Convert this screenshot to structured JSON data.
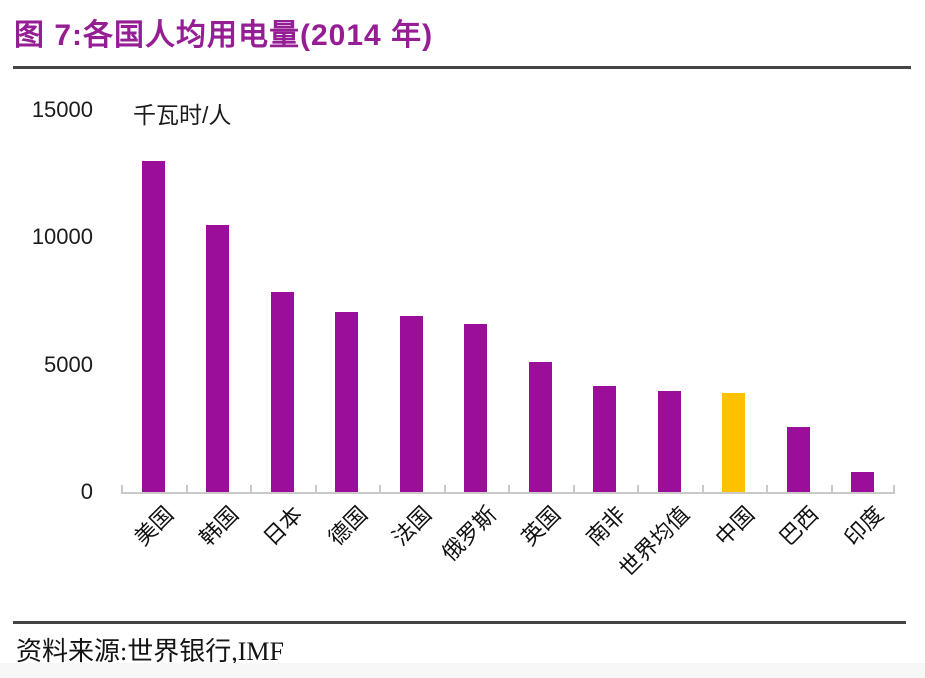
{
  "header": {
    "title": "图 7:各国人均用电量(2014 年)"
  },
  "chart_data": {
    "type": "bar",
    "title": "图 7:各国人均用电量(2014 年)",
    "unit_label": "千瓦时/人",
    "categories": [
      "美国",
      "韩国",
      "日本",
      "德国",
      "法国",
      "俄罗斯",
      "英国",
      "南非",
      "世界均值",
      "中国",
      "巴西",
      "印度"
    ],
    "values": [
      13000,
      10500,
      7850,
      7050,
      6920,
      6580,
      5120,
      4160,
      3960,
      3900,
      2550,
      780
    ],
    "ylabel": "千瓦时/人",
    "xlabel": "",
    "ylim": [
      0,
      15000
    ],
    "yticks": [
      0,
      5000,
      10000,
      15000
    ],
    "bar_color": "#9A0E9A",
    "highlight_category": "中国",
    "highlight_color": "#FFC000",
    "axis_color": "#c9c9c9",
    "grid": false,
    "legend_position": "none"
  },
  "footer": {
    "source": "资料来源:世界银行,IMF"
  }
}
